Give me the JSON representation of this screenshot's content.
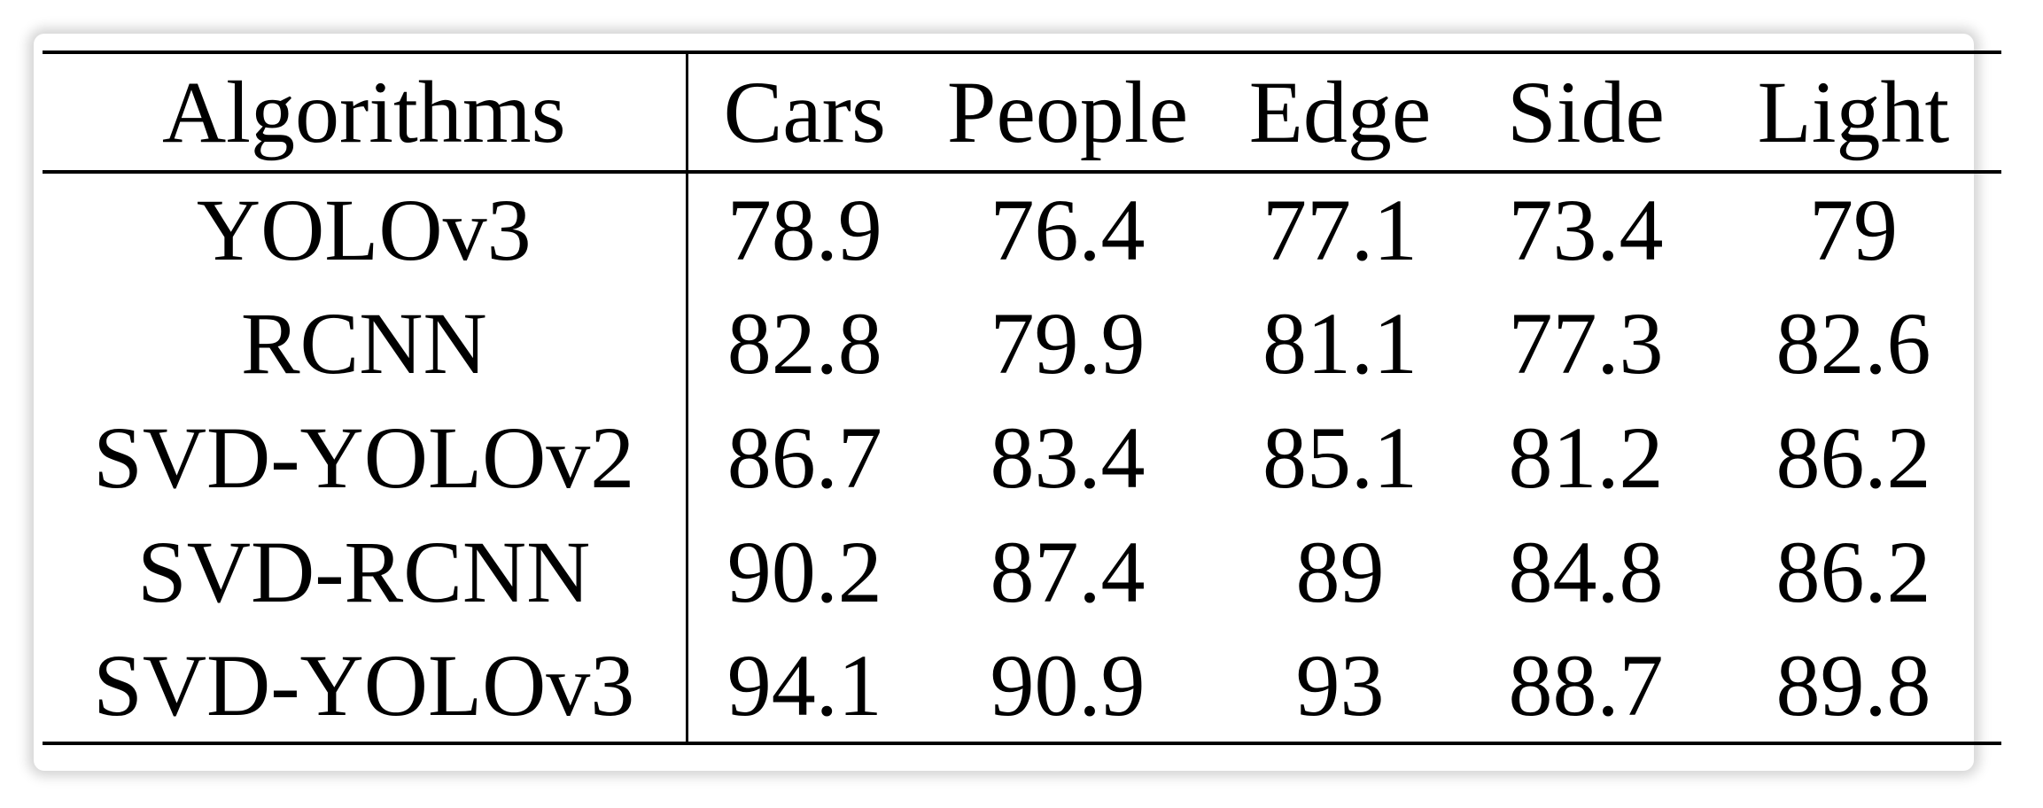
{
  "table": {
    "headers": [
      "Algorithms",
      "Cars",
      "People",
      "Edge",
      "Side",
      "Light"
    ],
    "rows": [
      {
        "algorithm": "YOLOv3",
        "values": [
          "78.9",
          "76.4",
          "77.1",
          "73.4",
          "79"
        ]
      },
      {
        "algorithm": "RCNN",
        "values": [
          "82.8",
          "79.9",
          "81.1",
          "77.3",
          "82.6"
        ]
      },
      {
        "algorithm": "SVD-YOLOv2",
        "values": [
          "86.7",
          "83.4",
          "85.1",
          "81.2",
          "86.2"
        ]
      },
      {
        "algorithm": "SVD-RCNN",
        "values": [
          "90.2",
          "87.4",
          "89",
          "84.8",
          "86.2"
        ]
      },
      {
        "algorithm": "SVD-YOLOv3",
        "values": [
          "94.1",
          "90.9",
          "93",
          "88.7",
          "89.8"
        ]
      }
    ]
  }
}
